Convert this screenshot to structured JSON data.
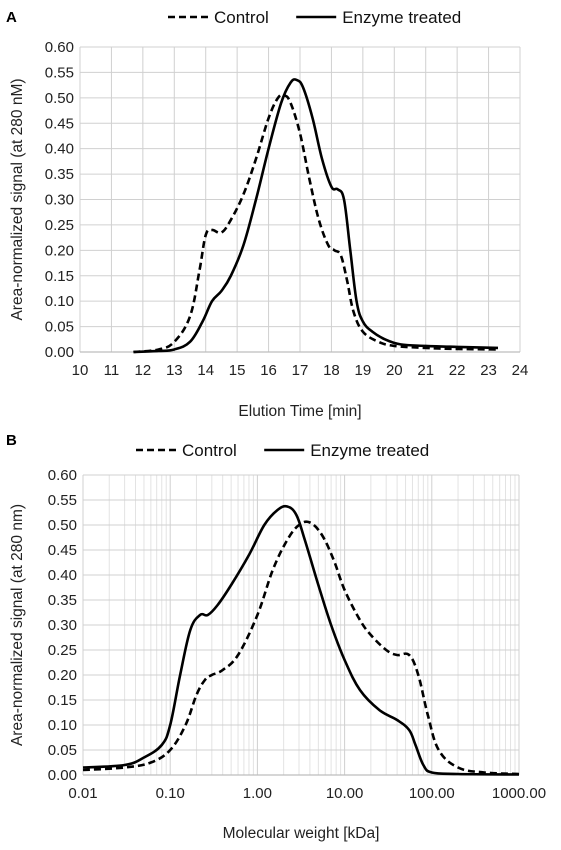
{
  "chart_data": [
    {
      "panel": "A",
      "type": "line",
      "xlabel": "Elution Time [min]",
      "ylabel": "Area-normalized signal (at 280 nM)",
      "xlim": [
        10,
        24
      ],
      "ylim": [
        0,
        0.6
      ],
      "x_ticks": [
        "10",
        "11",
        "12",
        "13",
        "14",
        "15",
        "16",
        "17",
        "18",
        "19",
        "20",
        "21",
        "22",
        "23",
        "24"
      ],
      "y_ticks": [
        "0.00",
        "0.05",
        "0.10",
        "0.15",
        "0.20",
        "0.25",
        "0.30",
        "0.35",
        "0.40",
        "0.45",
        "0.50",
        "0.55",
        "0.60"
      ],
      "x_grid": "major",
      "y_grid": "major",
      "legend": "top-center",
      "series": [
        {
          "name": "Control",
          "style": "dashed",
          "color": "#000000",
          "x": [
            11.7,
            12.5,
            13.0,
            13.5,
            13.8,
            14.0,
            14.2,
            14.5,
            14.8,
            15.2,
            15.6,
            16.0,
            16.3,
            16.5,
            16.7,
            17.0,
            17.3,
            17.6,
            17.9,
            18.1,
            18.3,
            18.5,
            18.7,
            19.0,
            19.5,
            20.0,
            21.0,
            22.0,
            23.3
          ],
          "y": [
            0.0,
            0.005,
            0.02,
            0.07,
            0.16,
            0.23,
            0.24,
            0.235,
            0.26,
            0.31,
            0.38,
            0.46,
            0.5,
            0.505,
            0.49,
            0.43,
            0.34,
            0.26,
            0.21,
            0.2,
            0.19,
            0.14,
            0.08,
            0.04,
            0.02,
            0.012,
            0.008,
            0.006,
            0.005
          ]
        },
        {
          "name": "Enzyme treated",
          "style": "solid",
          "color": "#000000",
          "x": [
            11.7,
            12.5,
            13.0,
            13.5,
            13.9,
            14.2,
            14.5,
            14.8,
            15.2,
            15.6,
            16.0,
            16.4,
            16.7,
            16.9,
            17.1,
            17.4,
            17.7,
            18.0,
            18.2,
            18.4,
            18.6,
            18.8,
            19.0,
            19.3,
            19.7,
            20.2,
            21.0,
            22.0,
            23.3
          ],
          "y": [
            0.0,
            0.002,
            0.005,
            0.02,
            0.06,
            0.1,
            0.12,
            0.15,
            0.21,
            0.3,
            0.4,
            0.49,
            0.53,
            0.535,
            0.52,
            0.46,
            0.38,
            0.325,
            0.32,
            0.3,
            0.2,
            0.1,
            0.06,
            0.04,
            0.025,
            0.015,
            0.012,
            0.01,
            0.008
          ]
        }
      ]
    },
    {
      "panel": "B",
      "type": "line",
      "xlabel": "Molecular weight [kDa]",
      "ylabel": "Area-normalized signal (at 280 nm)",
      "x_scale": "log",
      "xlim": [
        0.01,
        1000
      ],
      "ylim": [
        0,
        0.6
      ],
      "x_ticks": [
        "0.01",
        "0.10",
        "1.00",
        "10.00",
        "100.00",
        "1000.00"
      ],
      "y_ticks": [
        "0.00",
        "0.05",
        "0.10",
        "0.15",
        "0.20",
        "0.25",
        "0.30",
        "0.35",
        "0.40",
        "0.45",
        "0.50",
        "0.55",
        "0.60"
      ],
      "x_grid": "major+minor",
      "y_grid": "major",
      "legend": "top-center",
      "series": [
        {
          "name": "Control",
          "style": "dashed",
          "color": "#000000",
          "x": [
            0.01,
            0.03,
            0.06,
            0.1,
            0.15,
            0.2,
            0.25,
            0.3,
            0.4,
            0.6,
            1.0,
            1.5,
            2.2,
            3.0,
            4.0,
            5.5,
            7.5,
            10,
            15,
            20,
            30,
            40,
            55,
            70,
            90,
            120,
            200,
            400,
            1000
          ],
          "y": [
            0.01,
            0.015,
            0.025,
            0.05,
            0.1,
            0.16,
            0.19,
            0.2,
            0.21,
            0.24,
            0.32,
            0.41,
            0.47,
            0.5,
            0.505,
            0.48,
            0.43,
            0.37,
            0.31,
            0.28,
            0.25,
            0.24,
            0.24,
            0.2,
            0.12,
            0.05,
            0.015,
            0.005,
            0.002
          ]
        },
        {
          "name": "Enzyme treated",
          "style": "solid",
          "color": "#000000",
          "x": [
            0.01,
            0.03,
            0.05,
            0.08,
            0.1,
            0.13,
            0.17,
            0.22,
            0.27,
            0.35,
            0.5,
            0.8,
            1.2,
            1.7,
            2.2,
            2.8,
            3.5,
            5.0,
            7.0,
            10,
            15,
            25,
            40,
            55,
            65,
            80,
            100,
            200,
            1000
          ],
          "y": [
            0.015,
            0.02,
            0.035,
            0.06,
            0.1,
            0.2,
            0.29,
            0.32,
            0.32,
            0.34,
            0.38,
            0.44,
            0.5,
            0.53,
            0.537,
            0.52,
            0.47,
            0.38,
            0.3,
            0.23,
            0.17,
            0.13,
            0.11,
            0.09,
            0.06,
            0.02,
            0.005,
            0.002,
            0.001
          ]
        }
      ]
    }
  ]
}
